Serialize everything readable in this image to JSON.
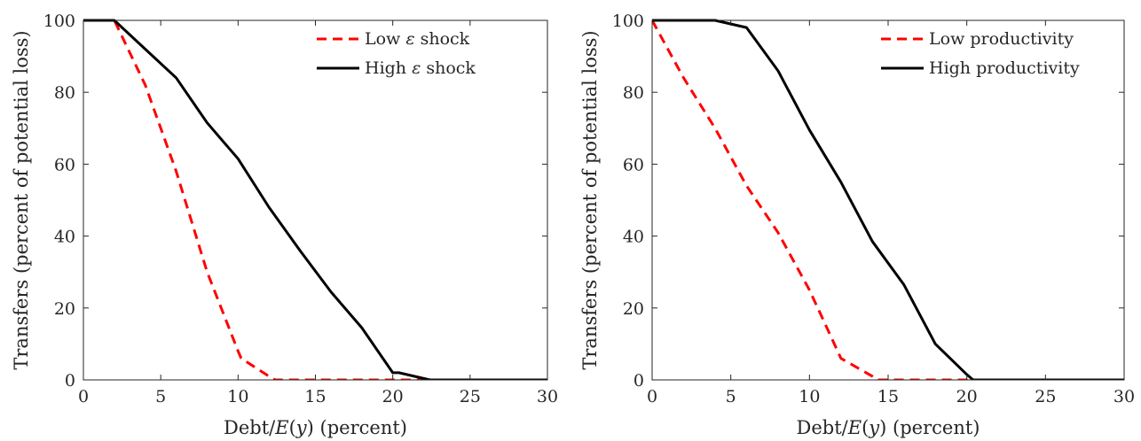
{
  "chart_data": [
    {
      "type": "line",
      "xlabel": "Debt/E(y) (percent)",
      "ylabel": "Transfers (percent of potential loss)",
      "xlim": [
        0,
        30
      ],
      "ylim": [
        0,
        100
      ],
      "xticks": [
        0,
        5,
        10,
        15,
        20,
        25,
        30
      ],
      "yticks": [
        0,
        20,
        40,
        60,
        80,
        100
      ],
      "grid": false,
      "legend_position": "top-right",
      "series": [
        {
          "name": "Low ε shock",
          "color": "#ff0000",
          "style": "dashed",
          "x": [
            0,
            2,
            4,
            6,
            8,
            10,
            10.2,
            12,
            12.4,
            14,
            16,
            18,
            20,
            22,
            24,
            26,
            28,
            30
          ],
          "y": [
            100,
            100,
            82,
            58,
            30,
            8,
            6,
            1,
            0,
            0,
            0,
            0,
            0,
            0,
            0,
            0,
            0,
            0
          ]
        },
        {
          "name": "High ε shock",
          "color": "#000000",
          "style": "solid",
          "x": [
            0,
            2,
            4,
            6,
            8,
            10,
            12,
            14,
            16,
            18,
            20,
            20.4,
            22.4,
            24,
            26,
            28,
            30
          ],
          "y": [
            100,
            100,
            92,
            84,
            71.5,
            61.5,
            48,
            36,
            24.5,
            14.5,
            2,
            2,
            0,
            0,
            0,
            0,
            0
          ]
        }
      ]
    },
    {
      "type": "line",
      "xlabel": "Debt/E(y) (percent)",
      "ylabel": "Transfers (percent of potential loss)",
      "xlim": [
        0,
        30
      ],
      "ylim": [
        0,
        100
      ],
      "xticks": [
        0,
        5,
        10,
        15,
        20,
        25,
        30
      ],
      "yticks": [
        0,
        20,
        40,
        60,
        80,
        100
      ],
      "grid": false,
      "legend_position": "top-right",
      "series": [
        {
          "name": "Low productivity",
          "color": "#ff0000",
          "style": "dashed",
          "x": [
            0,
            2,
            4,
            6,
            8,
            10,
            12,
            14,
            14.3,
            16,
            18,
            20,
            22,
            24,
            26,
            28,
            30
          ],
          "y": [
            100,
            84,
            70,
            54,
            41,
            25,
            6,
            1,
            0,
            0,
            0,
            0,
            0,
            0,
            0,
            0,
            0
          ]
        },
        {
          "name": "High productivity",
          "color": "#000000",
          "style": "solid",
          "x": [
            0,
            2,
            4,
            6,
            8,
            10,
            12,
            14,
            16,
            18,
            20,
            20.4,
            22,
            24,
            26,
            28,
            30
          ],
          "y": [
            100,
            100,
            100,
            98,
            86,
            69.5,
            55,
            38.5,
            26.5,
            10,
            1.5,
            0,
            0,
            0,
            0,
            0,
            0
          ]
        }
      ]
    }
  ]
}
